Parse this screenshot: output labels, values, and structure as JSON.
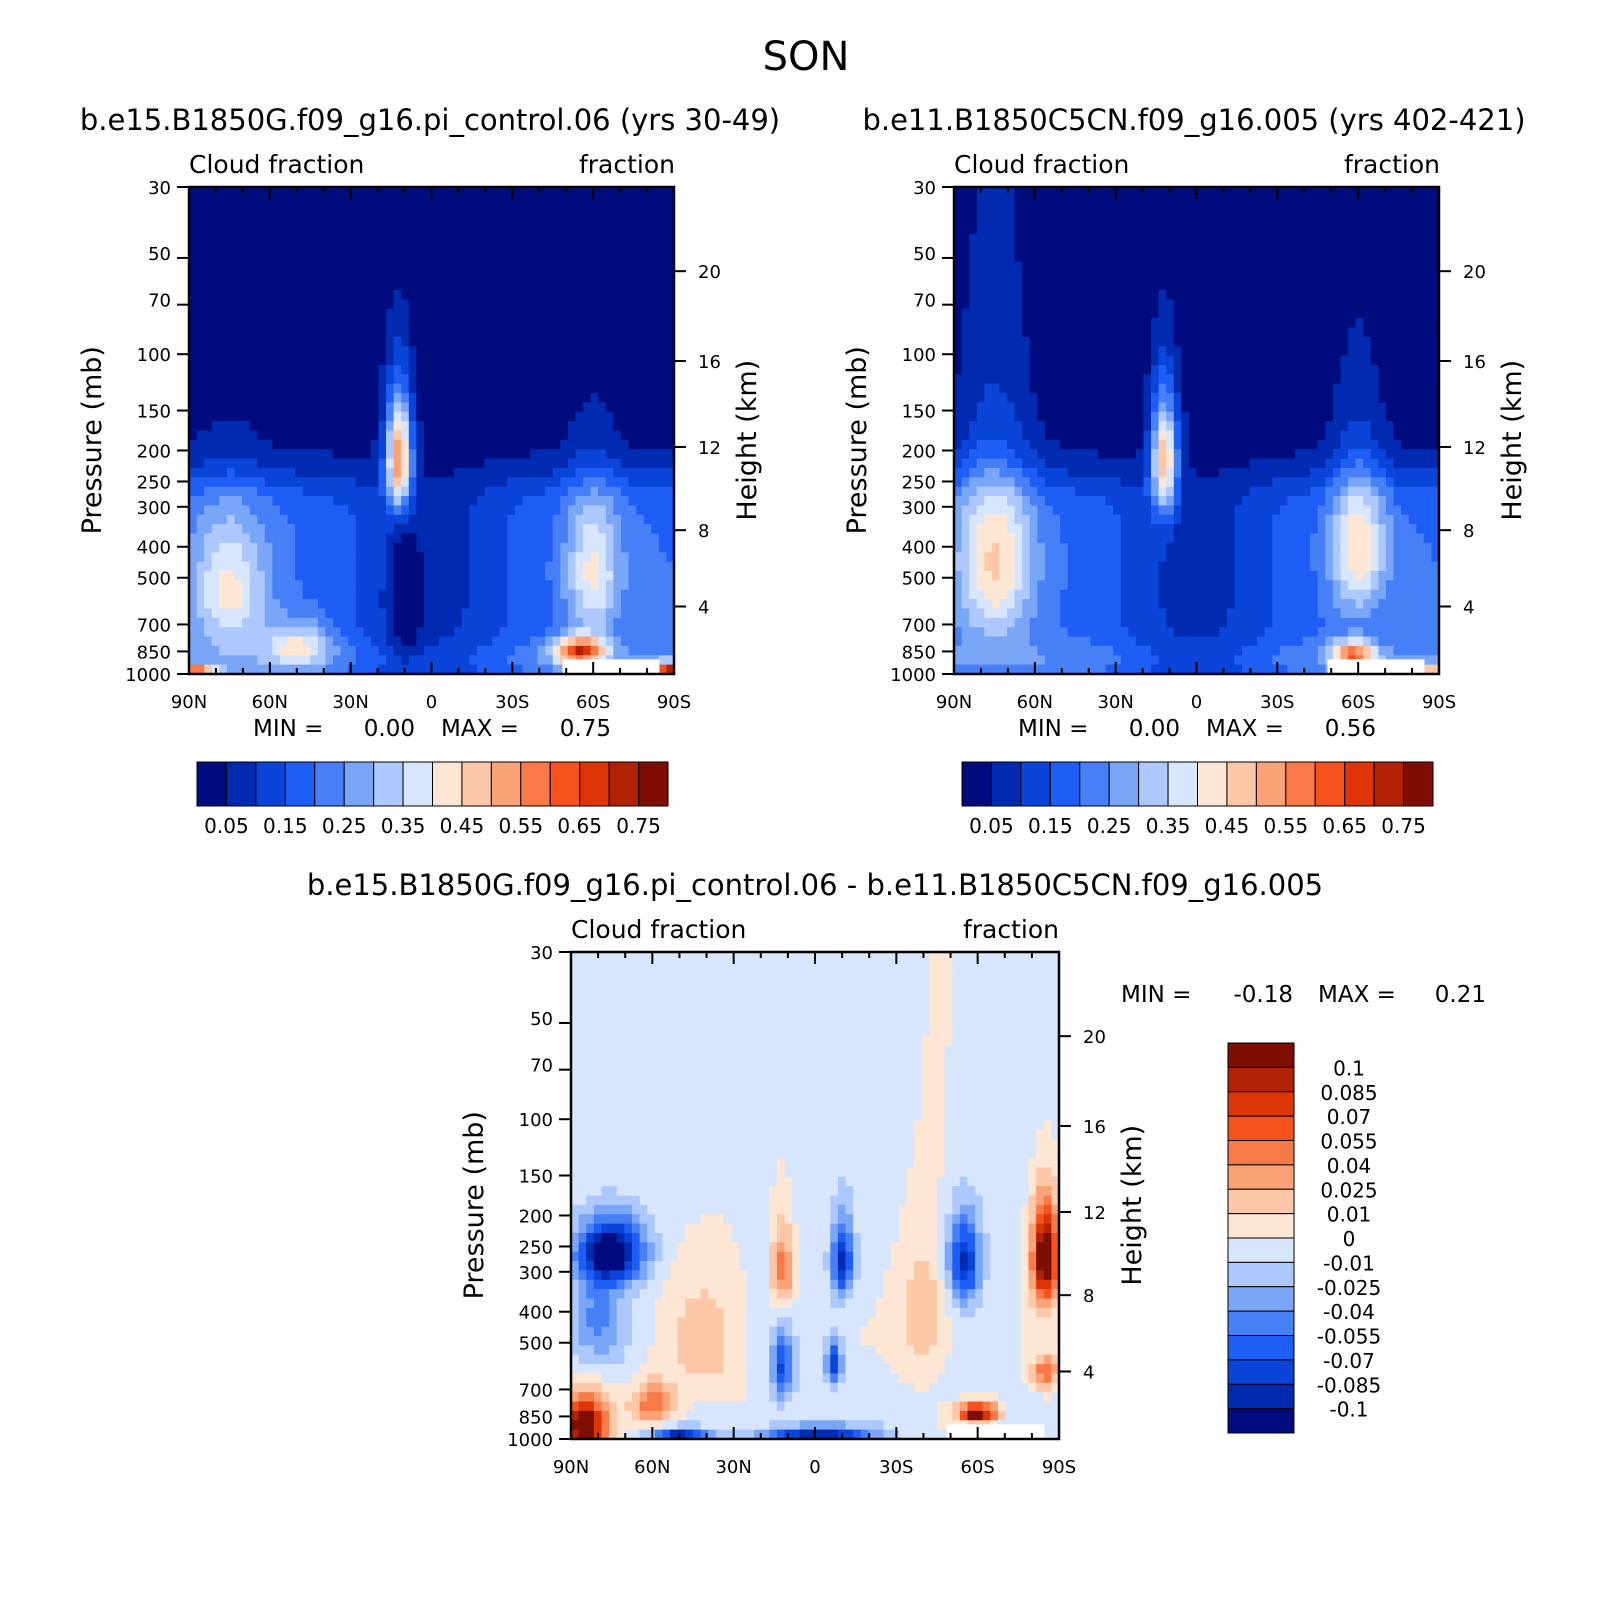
{
  "figure": {
    "title": "SON",
    "units_label": "fraction"
  },
  "colors": {
    "abs_palette": [
      "#000c7d",
      "#002ab0",
      "#0a44d8",
      "#1f5ef5",
      "#4780f6",
      "#7aa6f8",
      "#adc8fc",
      "#d8e6fd",
      "#fde6d4",
      "#fcc8a8",
      "#fba276",
      "#f97a49",
      "#f5521d",
      "#dc3507",
      "#b12204",
      "#7e0d02"
    ],
    "diff_palette": [
      "#000c7d",
      "#002ab0",
      "#0a44d8",
      "#1f5ef5",
      "#4780f6",
      "#7aa6f8",
      "#adc8fc",
      "#d8e6fd",
      "#fde6d4",
      "#fcc8a8",
      "#fba276",
      "#f97a49",
      "#f5521d",
      "#dc3507",
      "#b12204",
      "#7e0d02"
    ]
  },
  "chart_data": [
    {
      "type": "heatmap",
      "panel": "case",
      "title": "b.e15.B1850G.f09_g16.pi_control.06 (yrs 30-49)",
      "left_label": "Cloud fraction",
      "right_label": "fraction",
      "xlabel": "",
      "ylabel": "Pressure (mb)",
      "ylabel_right": "Height (km)",
      "x_ticks": [
        "90N",
        "60N",
        "30N",
        "0",
        "30S",
        "60S",
        "90S"
      ],
      "y_ticks": [
        "30",
        "50",
        "70",
        "100",
        "150",
        "200",
        "250",
        "300",
        "400",
        "500",
        "700",
        "850",
        "1000"
      ],
      "height_ticks": [
        "20",
        "16",
        "12",
        "8",
        "4"
      ],
      "stats": {
        "min_label": "MIN =",
        "min": "0.00",
        "max_label": "MAX =",
        "max": "0.75"
      },
      "colorbar_ticks": [
        "0.05",
        "0.15",
        "0.25",
        "0.35",
        "0.45",
        "0.55",
        "0.65",
        "0.75"
      ],
      "features": [
        {
          "lat": 75,
          "p": 550,
          "wlat": 14,
          "wp": 260,
          "v": 0.22
        },
        {
          "lat": 50,
          "p": 820,
          "wlat": 12,
          "wp": 140,
          "v": 0.2
        },
        {
          "lat": 12,
          "p": 210,
          "wlat": 5,
          "wp": 90,
          "v": 0.52
        },
        {
          "lat": 10,
          "p": 600,
          "wlat": 6,
          "wp": 300,
          "v": -0.12
        },
        {
          "lat": -55,
          "p": 850,
          "wlat": 9,
          "wp": 90,
          "v": 0.45
        },
        {
          "lat": -60,
          "p": 480,
          "wlat": 10,
          "wp": 240,
          "v": 0.22
        },
        {
          "lat": -88,
          "p": 990,
          "wlat": 6,
          "wp": 60,
          "v": 0.55
        },
        {
          "lat": 88,
          "p": 995,
          "wlat": 8,
          "wp": 40,
          "v": 0.55
        }
      ]
    },
    {
      "type": "heatmap",
      "panel": "control",
      "title": "b.e11.B1850C5CN.f09_g16.005 (yrs 402-421)",
      "left_label": "Cloud fraction",
      "right_label": "fraction",
      "xlabel": "",
      "ylabel": "Pressure (mb)",
      "ylabel_right": "Height (km)",
      "x_ticks": [
        "90N",
        "60N",
        "30N",
        "0",
        "30S",
        "60S",
        "90S"
      ],
      "y_ticks": [
        "30",
        "50",
        "70",
        "100",
        "150",
        "200",
        "250",
        "300",
        "400",
        "500",
        "700",
        "850",
        "1000"
      ],
      "height_ticks": [
        "20",
        "16",
        "12",
        "8",
        "4"
      ],
      "stats": {
        "min_label": "MIN =",
        "min": "0.00",
        "max_label": "MAX =",
        "max": "0.56"
      },
      "colorbar_ticks": [
        "0.05",
        "0.15",
        "0.25",
        "0.35",
        "0.45",
        "0.55",
        "0.65",
        "0.75"
      ],
      "features": [
        {
          "lat": 75,
          "p": 450,
          "wlat": 14,
          "wp": 300,
          "v": 0.26
        },
        {
          "lat": 12,
          "p": 210,
          "wlat": 5,
          "wp": 90,
          "v": 0.45
        },
        {
          "lat": -58,
          "p": 880,
          "wlat": 8,
          "wp": 90,
          "v": 0.38
        },
        {
          "lat": -60,
          "p": 400,
          "wlat": 10,
          "wp": 220,
          "v": 0.25
        },
        {
          "lat": -88,
          "p": 990,
          "wlat": 6,
          "wp": 60,
          "v": 0.3
        }
      ]
    },
    {
      "type": "heatmap",
      "panel": "difference",
      "title": "b.e15.B1850G.f09_g16.pi_control.06 - b.e11.B1850C5CN.f09_g16.005",
      "left_label": "Cloud fraction",
      "right_label": "fraction",
      "xlabel": "",
      "ylabel": "Pressure (mb)",
      "ylabel_right": "Height (km)",
      "x_ticks": [
        "90N",
        "60N",
        "30N",
        "0",
        "30S",
        "60S",
        "90S"
      ],
      "y_ticks": [
        "30",
        "50",
        "70",
        "100",
        "150",
        "200",
        "250",
        "300",
        "400",
        "500",
        "700",
        "850",
        "1000"
      ],
      "height_ticks": [
        "20",
        "16",
        "12",
        "8",
        "4"
      ],
      "stats": {
        "min_label": "MIN =",
        "min": "-0.18",
        "max_label": "MAX =",
        "max": "0.21"
      },
      "colorbar_ticks": [
        "0.1",
        "0.085",
        "0.07",
        "0.055",
        "0.04",
        "0.025",
        "0.01",
        "0",
        "-0.01",
        "-0.025",
        "-0.04",
        "-0.055",
        "-0.07",
        "-0.085",
        "-0.1"
      ],
      "features": [
        {
          "lat": 75,
          "p": 260,
          "wlat": 12,
          "wp": 60,
          "v": -0.12
        },
        {
          "lat": 80,
          "p": 420,
          "wlat": 10,
          "wp": 150,
          "v": -0.04
        },
        {
          "lat": 85,
          "p": 900,
          "wlat": 8,
          "wp": 180,
          "v": 0.13
        },
        {
          "lat": 60,
          "p": 780,
          "wlat": 8,
          "wp": 120,
          "v": 0.06
        },
        {
          "lat": 40,
          "p": 500,
          "wlat": 15,
          "wp": 250,
          "v": 0.025
        },
        {
          "lat": 12,
          "p": 300,
          "wlat": 4,
          "wp": 90,
          "v": 0.06
        },
        {
          "lat": -10,
          "p": 280,
          "wlat": 4,
          "wp": 80,
          "v": -0.09
        },
        {
          "lat": 12,
          "p": 600,
          "wlat": 4,
          "wp": 150,
          "v": -0.07
        },
        {
          "lat": -7,
          "p": 580,
          "wlat": 3,
          "wp": 100,
          "v": -0.08
        },
        {
          "lat": -40,
          "p": 420,
          "wlat": 10,
          "wp": 200,
          "v": 0.035
        },
        {
          "lat": -55,
          "p": 280,
          "wlat": 6,
          "wp": 90,
          "v": -0.09
        },
        {
          "lat": -60,
          "p": 830,
          "wlat": 7,
          "wp": 60,
          "v": 0.12
        },
        {
          "lat": -85,
          "p": 270,
          "wlat": 5,
          "wp": 100,
          "v": 0.13
        },
        {
          "lat": -85,
          "p": 620,
          "wlat": 5,
          "wp": 80,
          "v": 0.06
        },
        {
          "lat": 0,
          "p": 960,
          "wlat": 20,
          "wp": 50,
          "v": -0.1
        },
        {
          "lat": 50,
          "p": 960,
          "wlat": 10,
          "wp": 40,
          "v": -0.09
        }
      ]
    }
  ]
}
